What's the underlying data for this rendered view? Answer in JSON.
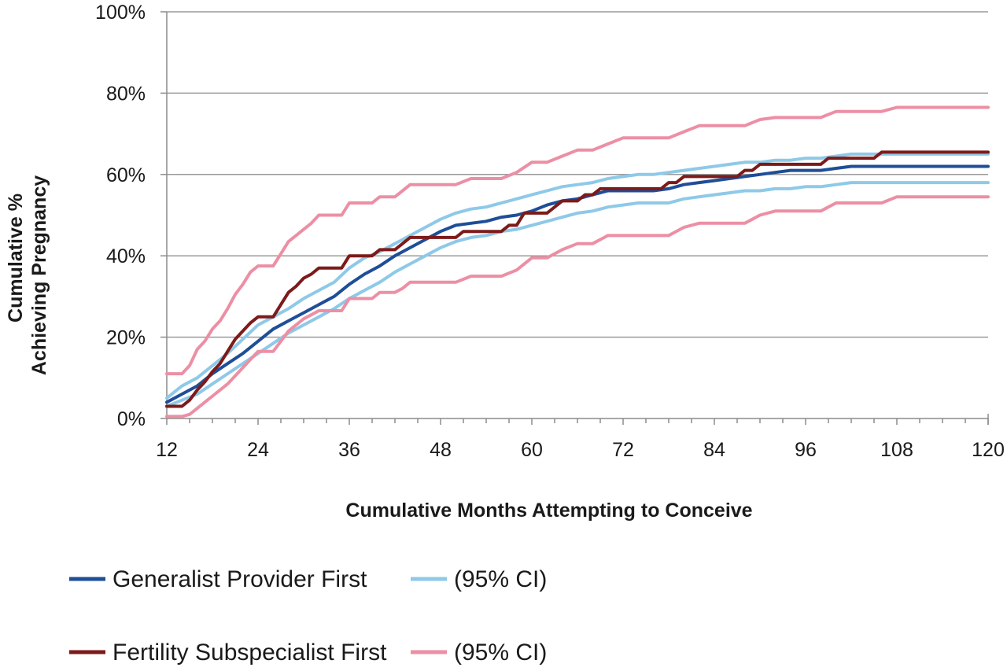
{
  "chart_data": {
    "type": "line",
    "title": "",
    "xlabel": "Cumulative Months Attempting to Conceive",
    "ylabel_lines": [
      "Cumulative %",
      "Achieving Pregnancy"
    ],
    "xlim": [
      12,
      120
    ],
    "ylim": [
      0,
      100
    ],
    "x_ticks": [
      12,
      24,
      36,
      48,
      60,
      72,
      84,
      96,
      108,
      120
    ],
    "x_tick_labels": [
      "12",
      "24",
      "36",
      "48",
      "60",
      "72",
      "84",
      "96",
      "108",
      "120"
    ],
    "y_ticks": [
      0,
      20,
      40,
      60,
      80,
      100
    ],
    "y_tick_labels": [
      "0%",
      "20%",
      "40%",
      "60%",
      "80%",
      "100%"
    ],
    "grid": "horizontal",
    "legend_position": "bottom",
    "series": [
      {
        "name": "Generalist Provider First",
        "color": "#1f4e98",
        "width": 4,
        "x": [
          12,
          14,
          16,
          18,
          20,
          22,
          24,
          26,
          28,
          30,
          32,
          34,
          36,
          38,
          40,
          42,
          44,
          46,
          48,
          50,
          52,
          54,
          56,
          58,
          60,
          62,
          64,
          66,
          68,
          70,
          72,
          74,
          76,
          78,
          80,
          82,
          84,
          86,
          88,
          90,
          92,
          94,
          96,
          98,
          100,
          102,
          104,
          106,
          108,
          110,
          112,
          114,
          116,
          118,
          120
        ],
        "values": [
          4,
          6,
          8,
          11,
          13.5,
          16,
          19,
          22,
          24,
          26,
          28,
          30,
          33,
          35.5,
          37.5,
          40,
          42,
          44,
          46,
          47.5,
          48,
          48.5,
          49.5,
          50,
          51,
          52.5,
          53.5,
          54,
          55,
          56,
          56,
          56,
          56,
          56.5,
          57.5,
          58,
          58.5,
          59,
          59.5,
          60,
          60.5,
          61,
          61,
          61,
          61.5,
          62,
          62,
          62,
          62,
          62,
          62,
          62,
          62,
          62,
          62
        ]
      },
      {
        "name": "(95% CI)",
        "color": "#8ec9e8",
        "width": 4,
        "x": [
          12,
          14,
          16,
          18,
          20,
          22,
          24,
          26,
          28,
          30,
          32,
          34,
          36,
          38,
          40,
          42,
          44,
          46,
          48,
          50,
          52,
          54,
          56,
          58,
          60,
          62,
          64,
          66,
          68,
          70,
          72,
          74,
          76,
          78,
          80,
          82,
          84,
          86,
          88,
          90,
          92,
          94,
          96,
          98,
          100,
          102,
          104,
          106,
          108,
          110,
          112,
          114,
          116,
          118,
          120
        ],
        "values": [
          5,
          8,
          10,
          13,
          16,
          19.5,
          23,
          25,
          27,
          29.5,
          31.5,
          33.5,
          37,
          39.5,
          41,
          43,
          45,
          47,
          49,
          50.5,
          51.5,
          52,
          53,
          54,
          55,
          56,
          57,
          57.5,
          58,
          59,
          59.5,
          60,
          60,
          60.5,
          61,
          61.5,
          62,
          62.5,
          63,
          63,
          63.5,
          63.5,
          64,
          64,
          64.5,
          65,
          65,
          65,
          65,
          65,
          65,
          65,
          65,
          65,
          65
        ]
      },
      {
        "name": "(95% CI)",
        "color": "#8ec9e8",
        "width": 4,
        "x": [
          12,
          14,
          16,
          18,
          20,
          22,
          24,
          26,
          28,
          30,
          32,
          34,
          36,
          38,
          40,
          42,
          44,
          46,
          48,
          50,
          52,
          54,
          56,
          58,
          60,
          62,
          64,
          66,
          68,
          70,
          72,
          74,
          76,
          78,
          80,
          82,
          84,
          86,
          88,
          90,
          92,
          94,
          96,
          98,
          100,
          102,
          104,
          106,
          108,
          110,
          112,
          114,
          116,
          118,
          120
        ],
        "values": [
          3,
          4.5,
          6,
          8.5,
          11,
          13.5,
          16,
          18.5,
          21,
          23,
          25,
          27,
          29.5,
          31.5,
          33.5,
          36,
          38,
          40,
          42,
          43.5,
          44.5,
          45,
          46,
          46.5,
          47.5,
          48.5,
          49.5,
          50.5,
          51,
          52,
          52.5,
          53,
          53,
          53,
          54,
          54.5,
          55,
          55.5,
          56,
          56,
          56.5,
          56.5,
          57,
          57,
          57.5,
          58,
          58,
          58,
          58,
          58,
          58,
          58,
          58,
          58,
          58
        ]
      },
      {
        "name": "Fertility Subspecialist First",
        "color": "#7d1a1a",
        "width": 4,
        "x": [
          12,
          13,
          14,
          15,
          16,
          17,
          18,
          19,
          20,
          21,
          22,
          23,
          24,
          25,
          26,
          27,
          28,
          29,
          30,
          31,
          32,
          33,
          34,
          35,
          36,
          37,
          38,
          39,
          40,
          41,
          42,
          43,
          44,
          45,
          46,
          47,
          48,
          49,
          50,
          51,
          52,
          53,
          54,
          55,
          56,
          57,
          58,
          59,
          60,
          61,
          62,
          63,
          64,
          65,
          66,
          67,
          68,
          69,
          70,
          71,
          72,
          73,
          74,
          75,
          76,
          77,
          78,
          79,
          80,
          81,
          82,
          83,
          84,
          85,
          86,
          87,
          88,
          89,
          90,
          91,
          92,
          93,
          94,
          95,
          96,
          97,
          98,
          99,
          100,
          101,
          102,
          103,
          104,
          105,
          106,
          107,
          108,
          110,
          112,
          114,
          116,
          118,
          120
        ],
        "values": [
          3,
          3,
          3,
          4.5,
          7,
          9,
          11.5,
          13.5,
          16.5,
          19.5,
          21.5,
          23.5,
          25,
          25,
          25,
          28,
          31,
          32.5,
          34.5,
          35.5,
          37,
          37,
          37,
          37,
          40,
          40,
          40,
          40,
          41.5,
          41.5,
          41.5,
          43,
          44.5,
          44.5,
          44.5,
          44.5,
          44.5,
          44.5,
          44.5,
          46,
          46,
          46,
          46,
          46,
          46,
          47.5,
          47.5,
          50.5,
          50.5,
          50.5,
          50.5,
          52,
          53.5,
          53.5,
          53.5,
          55,
          55,
          56.5,
          56.5,
          56.5,
          56.5,
          56.5,
          56.5,
          56.5,
          56.5,
          56.5,
          58,
          58,
          59.5,
          59.5,
          59.5,
          59.5,
          59.5,
          59.5,
          59.5,
          59.5,
          61,
          61,
          62.5,
          62.5,
          62.5,
          62.5,
          62.5,
          62.5,
          62.5,
          62.5,
          62.5,
          64,
          64,
          64,
          64,
          64,
          64,
          64,
          65.5,
          65.5,
          65.5,
          65.5,
          65.5,
          65.5,
          65.5,
          65.5,
          65.5
        ]
      },
      {
        "name": "(95% CI)",
        "color": "#ec8fa5",
        "width": 4,
        "x": [
          12,
          13,
          14,
          15,
          16,
          17,
          18,
          19,
          20,
          21,
          22,
          23,
          24,
          25,
          26,
          27,
          28,
          29,
          30,
          31,
          32,
          33,
          34,
          35,
          36,
          37,
          38,
          39,
          40,
          41,
          42,
          43,
          44,
          45,
          46,
          47,
          48,
          50,
          52,
          54,
          56,
          58,
          60,
          62,
          64,
          66,
          68,
          70,
          72,
          74,
          76,
          78,
          80,
          82,
          84,
          86,
          88,
          90,
          92,
          94,
          96,
          98,
          100,
          102,
          104,
          106,
          108,
          110,
          112,
          114,
          116,
          118,
          120
        ],
        "values": [
          11,
          11,
          11,
          13,
          17,
          19,
          22,
          24,
          27,
          30.5,
          33,
          36,
          37.5,
          37.5,
          37.5,
          40.5,
          43.5,
          45,
          46.5,
          48,
          50,
          50,
          50,
          50,
          53,
          53,
          53,
          53,
          54.5,
          54.5,
          54.5,
          56,
          57.5,
          57.5,
          57.5,
          57.5,
          57.5,
          57.5,
          59,
          59,
          59,
          60.5,
          63,
          63,
          64.5,
          66,
          66,
          67.5,
          69,
          69,
          69,
          69,
          70.5,
          72,
          72,
          72,
          72,
          73.5,
          74,
          74,
          74,
          74,
          75.5,
          75.5,
          75.5,
          75.5,
          76.5,
          76.5,
          76.5,
          76.5,
          76.5,
          76.5,
          76.5
        ]
      },
      {
        "name": "(95% CI)",
        "color": "#ec8fa5",
        "width": 4,
        "x": [
          12,
          13,
          14,
          15,
          16,
          17,
          18,
          19,
          20,
          21,
          22,
          23,
          24,
          25,
          26,
          27,
          28,
          29,
          30,
          31,
          32,
          33,
          34,
          35,
          36,
          37,
          38,
          39,
          40,
          41,
          42,
          43,
          44,
          45,
          46,
          47,
          48,
          50,
          52,
          54,
          56,
          58,
          60,
          62,
          64,
          66,
          68,
          70,
          72,
          74,
          76,
          78,
          80,
          82,
          84,
          86,
          88,
          90,
          92,
          94,
          96,
          98,
          100,
          102,
          104,
          106,
          108,
          110,
          112,
          114,
          116,
          118,
          120
        ],
        "values": [
          0.5,
          0.5,
          0.5,
          1,
          2.5,
          4,
          5.5,
          7,
          8.5,
          10.5,
          12.5,
          14.5,
          16.5,
          16.5,
          16.5,
          19,
          21.5,
          23,
          24.5,
          25.5,
          26.5,
          26.5,
          26.5,
          26.5,
          29.5,
          29.5,
          29.5,
          29.5,
          31,
          31,
          31,
          32,
          33.5,
          33.5,
          33.5,
          33.5,
          33.5,
          33.5,
          35,
          35,
          35,
          36.5,
          39.5,
          39.5,
          41.5,
          43,
          43,
          45,
          45,
          45,
          45,
          45,
          47,
          48,
          48,
          48,
          48,
          50,
          51,
          51,
          51,
          51,
          53,
          53,
          53,
          53,
          54.5,
          54.5,
          54.5,
          54.5,
          54.5,
          54.5,
          54.5
        ]
      }
    ],
    "legend": [
      {
        "label": "Generalist Provider First",
        "color": "#1f4e98"
      },
      {
        "label": "(95% CI)",
        "color": "#8ec9e8"
      },
      {
        "label": "Fertility Subspecialist First",
        "color": "#7d1a1a"
      },
      {
        "label": "(95% CI)",
        "color": "#ec8fa5"
      }
    ]
  }
}
